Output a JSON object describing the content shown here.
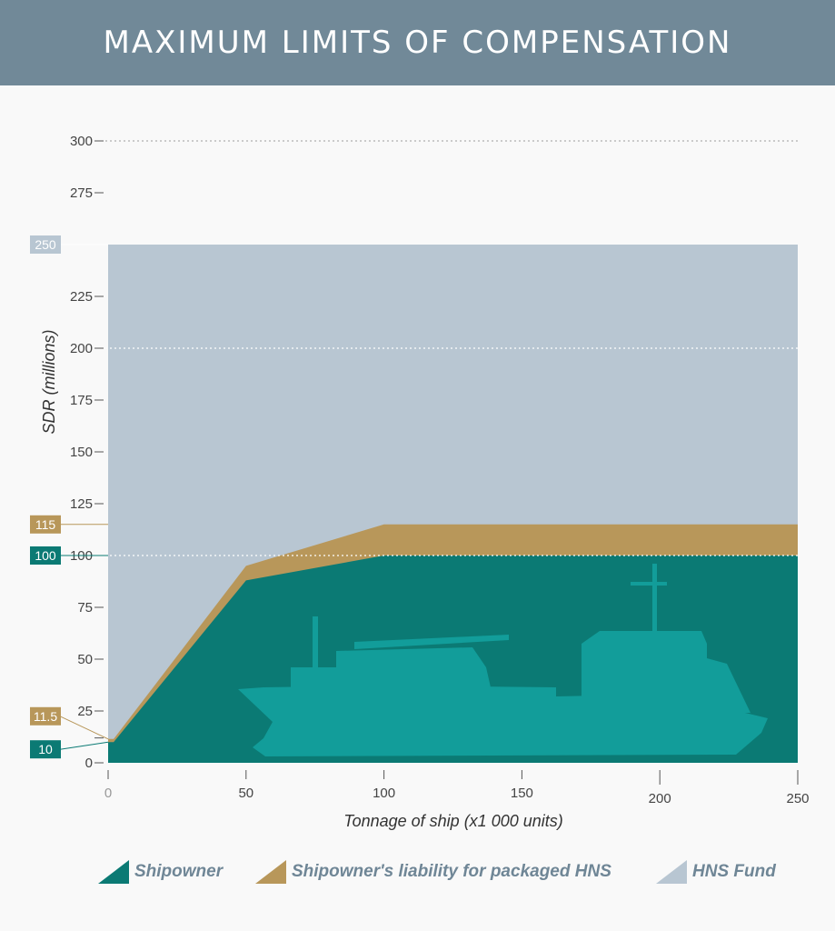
{
  "title": "MAXIMUM LIMITS OF COMPENSATION",
  "colors": {
    "header": "#718998",
    "shipowner": "#0b7a74",
    "packaged": "#b8975a",
    "fund": "#b8c6d2",
    "ship": "#129d9a",
    "axis_text": "#444444"
  },
  "chart_data": {
    "type": "area",
    "xlabel": "Tonnage of ship (x1 000 units)",
    "ylabel": "SDR (millions)",
    "xlim": [
      0,
      250
    ],
    "ylim": [
      0,
      300
    ],
    "x_ticks": [
      "0",
      "50",
      "100",
      "150",
      "200",
      "250"
    ],
    "y_ticks": [
      "0",
      "25",
      "50",
      "75",
      "100",
      "125",
      "150",
      "175",
      "200",
      "225",
      "250",
      "275",
      "300"
    ],
    "highlight_labels": [
      "250",
      "115",
      "100",
      "11.5",
      "10"
    ],
    "x": [
      0,
      2,
      50,
      100,
      250
    ],
    "series": [
      {
        "name": "Shipowner",
        "values": [
          10,
          10,
          88,
          100,
          100
        ]
      },
      {
        "name": "Shipowner's liability for packaged HNS",
        "values": [
          11.5,
          11.5,
          95,
          115,
          115
        ]
      },
      {
        "name": "HNS Fund",
        "values": [
          250,
          250,
          250,
          250,
          250
        ]
      }
    ],
    "legend_position": "bottom",
    "grid": "dotted at 100, 200, 300"
  },
  "legend": {
    "items": [
      {
        "label": "Shipowner"
      },
      {
        "label": "Shipowner's liability for packaged HNS"
      },
      {
        "label": "HNS Fund"
      }
    ]
  },
  "ship_silhouette_icon": "cargo-ship-icon"
}
